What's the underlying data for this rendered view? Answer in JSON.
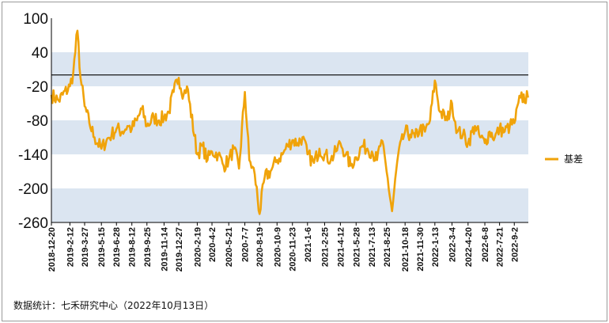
{
  "chart_data": {
    "type": "line",
    "colors": {
      "series": "#f0a30a",
      "band": "#dbe5f1",
      "zero_line": "#000000"
    },
    "ylim": [
      -260,
      100
    ],
    "y_ticks": [
      100,
      40,
      -20,
      -80,
      -140,
      -200,
      -260
    ],
    "y_tick_labels": [
      "100",
      "40",
      "-20",
      "-80",
      "-140",
      "-200",
      "-260"
    ],
    "x_tick_labels": [
      "2018-12-20",
      "2019-2-12",
      "2019-3-27",
      "2019-5-15",
      "2019-6-28",
      "2019-8-12",
      "2019-9-25",
      "2019-11-14",
      "2019-12-27",
      "2020-2-19",
      "2020-4-2",
      "2020-5-21",
      "2020-7-7",
      "2020-8-19",
      "2020-10-9",
      "2020-11-23",
      "2021-1-6",
      "2021-2-25",
      "2021-4-12",
      "2021-5-28",
      "2021-7-13",
      "2021-8-25",
      "2021-10-18",
      "2021-11-30",
      "2022-1-13",
      "2022-3-4",
      "2022-4-20",
      "2022-6-8",
      "2022-7-21",
      "2022-9-2"
    ],
    "grid": false,
    "legend_position": "right",
    "series": [
      {
        "name": "基差",
        "x": [
          "2018-12-20",
          "2019-1-10",
          "2019-2-12",
          "2019-2-22",
          "2019-3-6",
          "2019-3-15",
          "2019-3-27",
          "2019-4-10",
          "2019-4-25",
          "2019-5-15",
          "2019-5-30",
          "2019-6-14",
          "2019-6-28",
          "2019-7-15",
          "2019-7-30",
          "2019-8-12",
          "2019-8-27",
          "2019-9-10",
          "2019-9-25",
          "2019-10-15",
          "2019-10-30",
          "2019-11-14",
          "2019-11-28",
          "2019-12-12",
          "2019-12-27",
          "2020-1-10",
          "2020-1-20",
          "2020-2-19",
          "2020-3-5",
          "2020-3-20",
          "2020-4-2",
          "2020-4-20",
          "2020-5-6",
          "2020-5-21",
          "2020-6-5",
          "2020-6-20",
          "2020-7-7",
          "2020-7-20",
          "2020-8-5",
          "2020-8-19",
          "2020-9-3",
          "2020-9-20",
          "2020-10-9",
          "2020-10-25",
          "2020-11-9",
          "2020-11-23",
          "2020-12-8",
          "2020-12-22",
          "2021-1-6",
          "2021-1-25",
          "2021-2-10",
          "2021-2-25",
          "2021-3-15",
          "2021-3-30",
          "2021-4-12",
          "2021-4-28",
          "2021-5-12",
          "2021-5-28",
          "2021-6-15",
          "2021-6-30",
          "2021-7-13",
          "2021-7-28",
          "2021-8-10",
          "2021-8-25",
          "2021-9-10",
          "2021-9-28",
          "2021-10-18",
          "2021-11-2",
          "2021-11-16",
          "2021-11-30",
          "2021-12-15",
          "2021-12-30",
          "2022-1-13",
          "2022-1-28",
          "2022-2-18",
          "2022-3-4",
          "2022-3-20",
          "2022-4-5",
          "2022-4-20",
          "2022-5-10",
          "2022-5-25",
          "2022-6-8",
          "2022-6-22",
          "2022-7-7",
          "2022-7-21",
          "2022-8-5",
          "2022-8-20",
          "2022-9-2",
          "2022-9-20",
          "2022-10-12"
        ],
        "values": [
          -35,
          -45,
          -20,
          5,
          78,
          -5,
          -55,
          -85,
          -110,
          -130,
          -115,
          -105,
          -95,
          -100,
          -90,
          -95,
          -80,
          -60,
          -90,
          -75,
          -80,
          -75,
          -65,
          -30,
          -5,
          -35,
          -20,
          -140,
          -125,
          -150,
          -135,
          -140,
          -160,
          -150,
          -130,
          -165,
          -30,
          -150,
          -175,
          -245,
          -180,
          -170,
          -150,
          -140,
          -125,
          -115,
          -120,
          -110,
          -140,
          -155,
          -130,
          -140,
          -150,
          -135,
          -120,
          -140,
          -160,
          -145,
          -125,
          -130,
          -135,
          -150,
          -115,
          -170,
          -240,
          -140,
          -100,
          -105,
          -110,
          -95,
          -100,
          -80,
          -10,
          -65,
          -80,
          -50,
          -100,
          -105,
          -120,
          -90,
          -110,
          -120,
          -100,
          -110,
          -95,
          -100,
          -90,
          -85,
          -40,
          -40
        ]
      }
    ]
  },
  "footer": {
    "source": "数据统计：七禾研究中心（2022年10月13日）"
  }
}
